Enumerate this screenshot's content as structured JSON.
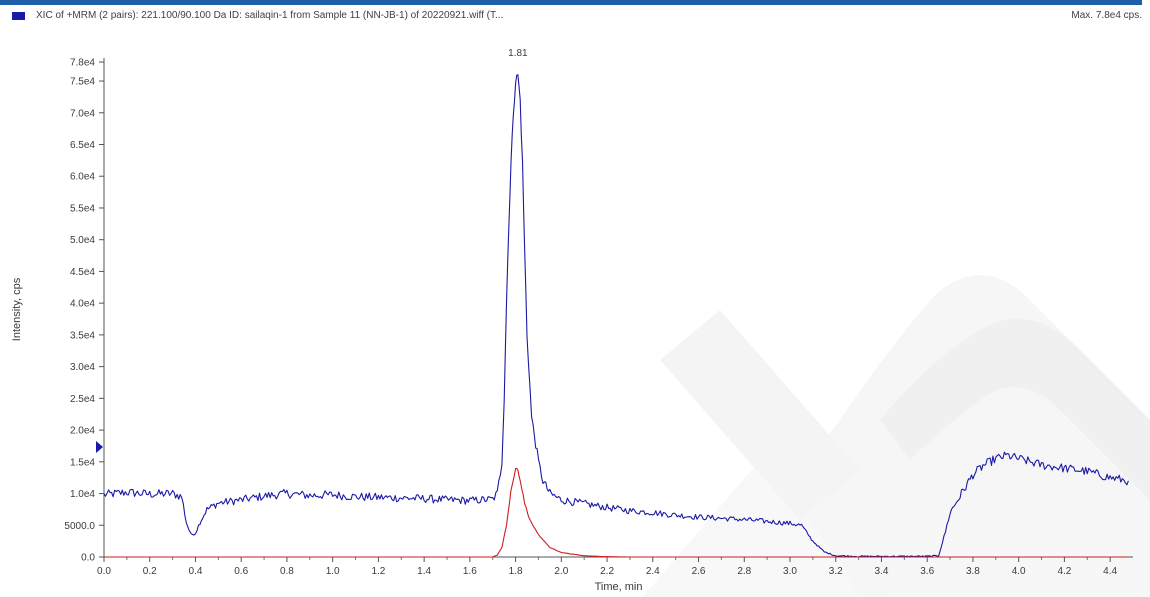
{
  "header": {
    "title": "XIC of +MRM (2 pairs): 221.100/90.100 Da ID: sailaqin-1 from Sample 11 (NN-JB-1) of 20220921.wiff (T...",
    "max_label": "Max. 7.8e4 cps."
  },
  "colors": {
    "series_primary": "#1a1aa6",
    "series_secondary": "#cc1e1e",
    "header_bar": "#1f5fa8",
    "watermark": "#e9e9e9"
  },
  "chart_data": {
    "type": "line",
    "title": "",
    "xlabel": "Time, min",
    "ylabel": "Intensity, cps",
    "xlim": [
      0.0,
      4.5
    ],
    "ylim": [
      0,
      78000
    ],
    "x_ticks": [
      "0.0",
      "0.2",
      "0.4",
      "0.6",
      "0.8",
      "1.0",
      "1.2",
      "1.4",
      "1.6",
      "1.8",
      "2.0",
      "2.2",
      "2.4",
      "2.6",
      "2.8",
      "3.0",
      "3.2",
      "3.4",
      "3.6",
      "3.8",
      "4.0",
      "4.2",
      "4.4"
    ],
    "y_ticks": [
      "0.0",
      "5000.0",
      "1.0e4",
      "1.5e4",
      "2.0e4",
      "2.5e4",
      "3.0e4",
      "3.5e4",
      "4.0e4",
      "4.5e4",
      "5.0e4",
      "5.5e4",
      "6.0e4",
      "6.5e4",
      "7.0e4",
      "7.5e4",
      "7.8e4"
    ],
    "grid": false,
    "peak_annotation": {
      "label": "1.81",
      "x": 1.81,
      "y": 78000
    },
    "series": [
      {
        "x": [
          0.0,
          0.1,
          0.2,
          0.3,
          0.34,
          0.36,
          0.38,
          0.4,
          0.42,
          0.45,
          0.5,
          0.6,
          0.7,
          0.8,
          0.9,
          1.0,
          1.1,
          1.2,
          1.3,
          1.4,
          1.5,
          1.6,
          1.7,
          1.72,
          1.74,
          1.75,
          1.76,
          1.77,
          1.78,
          1.79,
          1.8,
          1.81,
          1.82,
          1.83,
          1.84,
          1.85,
          1.87,
          1.9,
          1.92,
          1.95,
          2.0,
          2.1,
          2.2,
          2.3,
          2.4,
          2.5,
          2.6,
          2.7,
          2.8,
          2.9,
          3.0,
          3.05,
          3.1,
          3.15,
          3.2,
          3.3,
          3.4,
          3.5,
          3.6,
          3.65,
          3.68,
          3.7,
          3.75,
          3.8,
          3.85,
          3.9,
          3.95,
          4.0,
          4.1,
          4.2,
          4.3,
          4.4,
          4.48
        ],
        "y": [
          9800,
          10200,
          9900,
          10000,
          9500,
          5500,
          3500,
          3800,
          5500,
          7500,
          8500,
          9000,
          9600,
          10000,
          9700,
          9800,
          9500,
          9400,
          9300,
          9200,
          9000,
          8900,
          9100,
          10000,
          15000,
          25000,
          40000,
          52000,
          62000,
          70000,
          75000,
          76000,
          72000,
          62000,
          48000,
          35000,
          22000,
          15000,
          12000,
          10000,
          9000,
          8400,
          7800,
          7300,
          7000,
          6600,
          6300,
          6100,
          5900,
          5600,
          5300,
          5000,
          2500,
          800,
          200,
          100,
          100,
          100,
          100,
          200,
          4000,
          7000,
          10000,
          13000,
          14500,
          15500,
          16000,
          15500,
          14500,
          14000,
          13500,
          12500,
          12000
        ]
      },
      {
        "x": [
          0.0,
          1.0,
          1.6,
          1.7,
          1.72,
          1.74,
          1.76,
          1.78,
          1.8,
          1.81,
          1.82,
          1.84,
          1.86,
          1.9,
          1.95,
          2.0,
          2.1,
          2.2,
          2.3,
          3.6,
          4.48
        ],
        "y": [
          0,
          0,
          0,
          0,
          300,
          1500,
          5000,
          10500,
          14000,
          13800,
          12000,
          8500,
          6000,
          3500,
          1500,
          700,
          200,
          50,
          0,
          0,
          0
        ]
      }
    ]
  }
}
